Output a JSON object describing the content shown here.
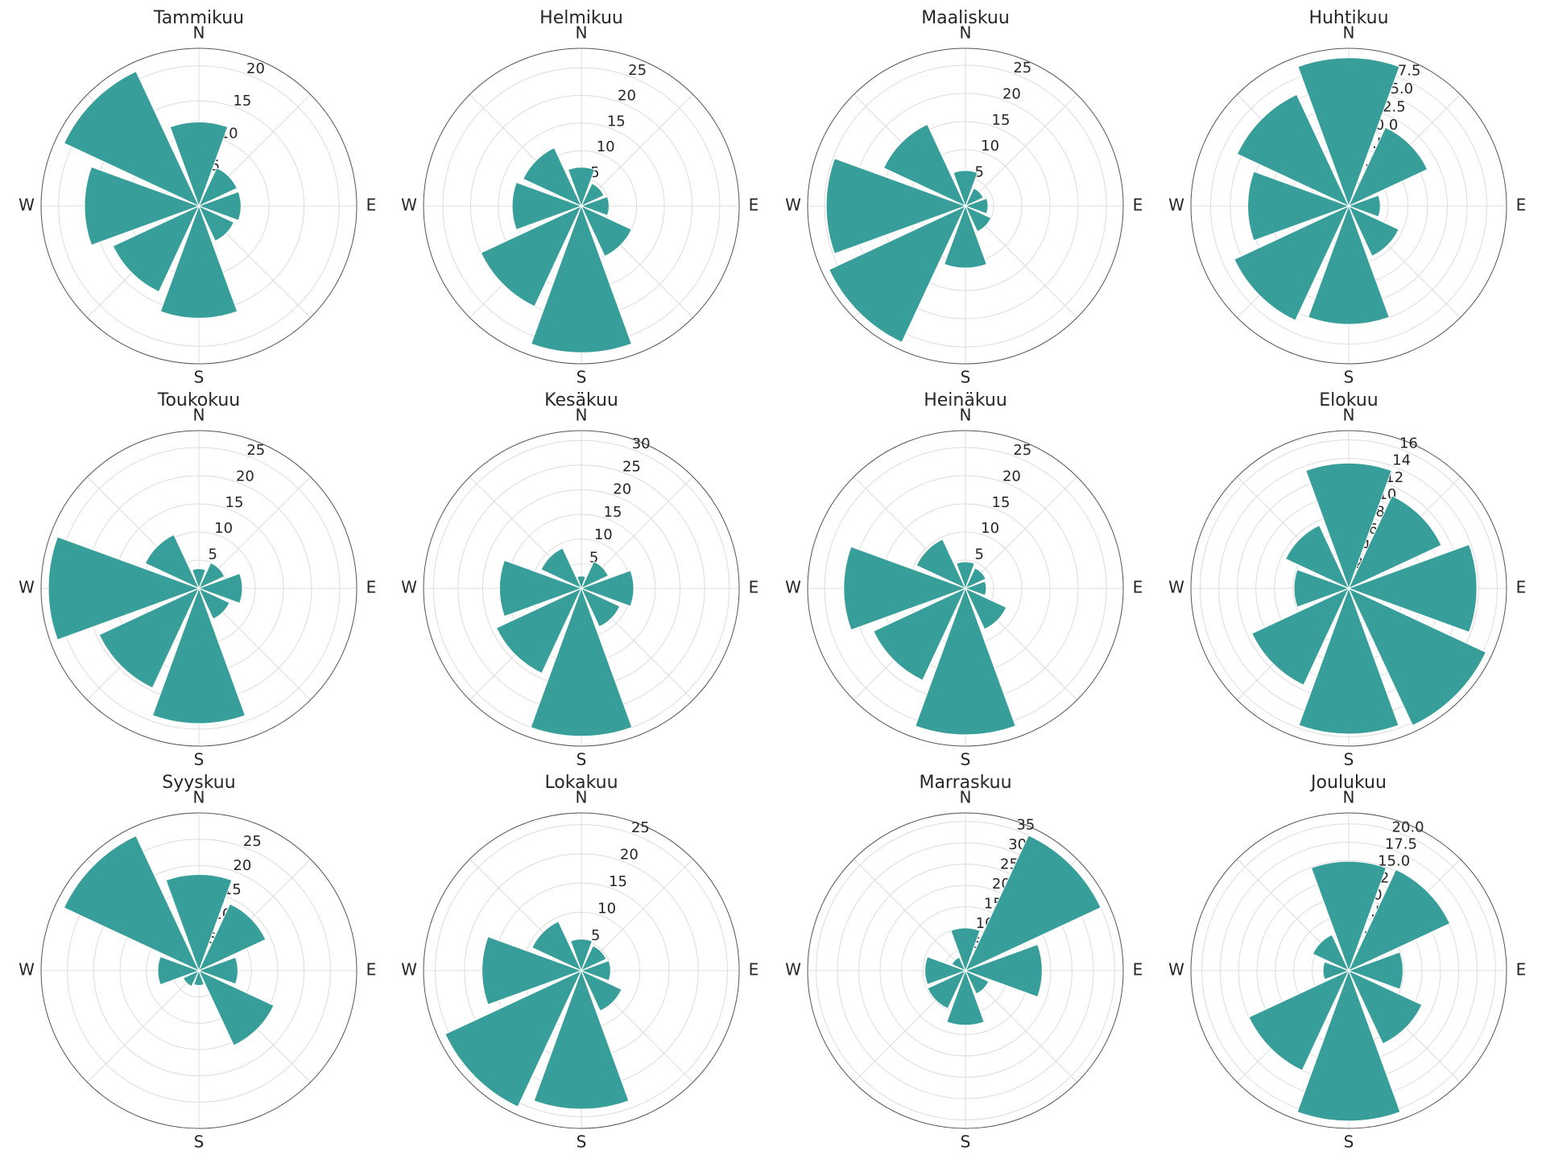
{
  "chart_data": [
    {
      "type": "rose",
      "title": "Tammikuu",
      "categories": [
        "N",
        null,
        "E",
        null,
        "S",
        null,
        "W",
        null
      ],
      "values": [
        12,
        6,
        6,
        5.5,
        16,
        13.5,
        16.3,
        21.2
      ],
      "color": "#389e9a",
      "ylim": [
        0,
        22.5
      ],
      "yticks": [
        5,
        10,
        15,
        20
      ],
      "grid": true
    },
    {
      "type": "rose",
      "title": "Helmikuu",
      "categories": [
        "N",
        null,
        "E",
        null,
        "S",
        null,
        "W",
        null
      ],
      "values": [
        7,
        4.5,
        5,
        10,
        26.5,
        20,
        12.5,
        11.6
      ],
      "color": "#389e9a",
      "ylim": [
        0,
        28.5
      ],
      "yticks": [
        5,
        10,
        15,
        20,
        25
      ],
      "grid": true
    },
    {
      "type": "rose",
      "title": "Maaliskuu",
      "categories": [
        "N",
        null,
        "E",
        null,
        "S",
        null,
        "W",
        null
      ],
      "values": [
        6.3,
        3.5,
        4,
        5,
        11,
        26.7,
        24.7,
        16
      ],
      "color": "#389e9a",
      "ylim": [
        0,
        28
      ],
      "yticks": [
        5,
        10,
        15,
        20,
        25
      ],
      "grid": true
    },
    {
      "type": "rose",
      "title": "Huhtikuu",
      "categories": [
        "N",
        null,
        "E",
        null,
        "S",
        null,
        "W",
        null
      ],
      "values": [
        18.8,
        11,
        4,
        7,
        15,
        16,
        12.8,
        15.6
      ],
      "color": "#389e9a",
      "ylim": [
        0,
        20
      ],
      "yticks": [
        2.5,
        {
          "value": 5,
          "label": "5.0"
        },
        7.5,
        {
          "value": 10,
          "label": "10.0"
        },
        12.5,
        {
          "value": 15,
          "label": "15.0"
        },
        17.5
      ],
      "grid": true
    },
    {
      "type": "rose",
      "title": "Toukokuu",
      "categories": [
        "N",
        null,
        "E",
        null,
        "S",
        null,
        "W",
        null
      ],
      "values": [
        3.5,
        5,
        7.7,
        6,
        24,
        19.5,
        26.7,
        10.5
      ],
      "color": "#389e9a",
      "ylim": [
        0,
        28
      ],
      "yticks": [
        5,
        10,
        15,
        20,
        25
      ],
      "grid": true
    },
    {
      "type": "rose",
      "title": "Kesäkuu",
      "categories": [
        "N",
        null,
        "E",
        null,
        "S",
        null,
        "W",
        null
      ],
      "values": [
        2.5,
        6,
        10.6,
        8.6,
        30,
        19,
        16.6,
        9
      ],
      "color": "#389e9a",
      "ylim": [
        0,
        32
      ],
      "yticks": [
        5,
        10,
        15,
        20,
        25,
        30
      ],
      "grid": true
    },
    {
      "type": "rose",
      "title": "Heinäkuu",
      "categories": [
        "N",
        null,
        "E",
        null,
        "S",
        null,
        "W",
        null
      ],
      "values": [
        4.7,
        4,
        3.7,
        8,
        26,
        18,
        21.6,
        9.6
      ],
      "color": "#389e9a",
      "ylim": [
        0,
        28
      ],
      "yticks": [
        5,
        10,
        15,
        20,
        25
      ],
      "grid": true
    },
    {
      "type": "rose",
      "title": "Elokuu",
      "categories": [
        "N",
        null,
        "E",
        null,
        "S",
        null,
        "W",
        null
      ],
      "values": [
        13.5,
        11,
        13.8,
        16.3,
        15.7,
        11.5,
        5.9,
        7.5
      ],
      "color": "#389e9a",
      "ylim": [
        0,
        17
      ],
      "yticks": [
        2,
        4,
        6,
        8,
        10,
        12,
        14,
        16
      ],
      "grid": true
    },
    {
      "type": "rose",
      "title": "Syyskuu",
      "categories": [
        "N",
        null,
        "E",
        null,
        "S",
        null,
        "W",
        null
      ],
      "values": [
        18.3,
        14,
        7.4,
        15.7,
        2.8,
        3.3,
        7.8,
        28.3
      ],
      "color": "#389e9a",
      "ylim": [
        0,
        30
      ],
      "yticks": [
        5,
        10,
        15,
        20,
        25
      ],
      "grid": true
    },
    {
      "type": "rose",
      "title": "Lokakuu",
      "categories": [
        "N",
        null,
        "E",
        null,
        "S",
        null,
        "W",
        null
      ],
      "values": [
        5.4,
        4.7,
        5,
        7.6,
        23.7,
        25.7,
        17,
        9.3
      ],
      "color": "#389e9a",
      "ylim": [
        0,
        27
      ],
      "yticks": [
        5,
        10,
        15,
        20,
        25
      ],
      "grid": true
    },
    {
      "type": "rose",
      "title": "Marraskuu",
      "categories": [
        "N",
        null,
        "E",
        null,
        "S",
        null,
        "W",
        null
      ],
      "values": [
        10,
        35,
        18,
        6,
        12.8,
        9.8,
        9.5,
        3.5
      ],
      "color": "#389e9a",
      "ylim": [
        0,
        37
      ],
      "yticks": [
        5,
        10,
        15,
        20,
        25,
        30,
        35
      ],
      "grid": true
    },
    {
      "type": "rose",
      "title": "Joulukuu",
      "categories": [
        "N",
        null,
        "E",
        null,
        "S",
        null,
        "W",
        null
      ],
      "values": [
        14.9,
        15.2,
        7.4,
        11,
        20.5,
        15,
        3.5,
        5.4
      ],
      "color": "#389e9a",
      "ylim": [
        0,
        21.5
      ],
      "yticks": [
        2.5,
        {
          "value": 5,
          "label": "5.0"
        },
        7.5,
        {
          "value": 10,
          "label": "10.0"
        },
        12.5,
        {
          "value": 15,
          "label": "15.0"
        },
        17.5,
        {
          "value": 20,
          "label": "20.0"
        }
      ],
      "grid": true
    }
  ]
}
